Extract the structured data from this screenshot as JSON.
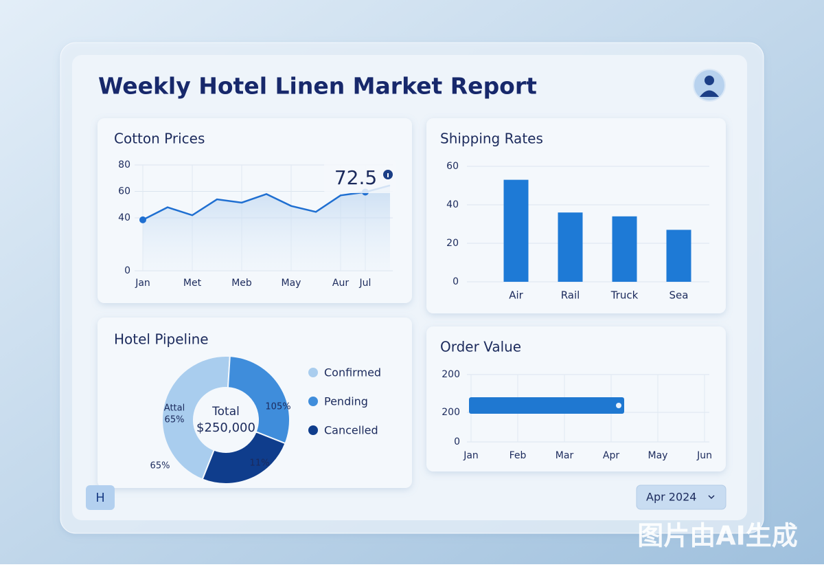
{
  "header": {
    "title": "Weekly Hotel Linen Market Report"
  },
  "chart_data": [
    {
      "type": "line",
      "title": "Cotton Prices",
      "categories": [
        "Jan",
        null,
        "Met",
        null,
        "Meb",
        null,
        "May",
        null,
        "Aur",
        "Jul",
        null
      ],
      "values": [
        38.5,
        48,
        42,
        54,
        51.5,
        58,
        49,
        44.5,
        57,
        59.5,
        64.5
      ],
      "color": "#1f6fd1",
      "ylim": [
        0,
        80
      ],
      "yticks": [
        0,
        40,
        60,
        80
      ],
      "grid": true,
      "annotation": "72.5"
    },
    {
      "type": "bar",
      "title": "Shipping Rates",
      "categories": [
        "Air",
        "Rail",
        "Truck",
        "Sea"
      ],
      "values": [
        53,
        36,
        34,
        27
      ],
      "color": "#1e7ad6",
      "ylim": [
        0,
        60
      ],
      "yticks": [
        0,
        20,
        40,
        60
      ],
      "grid": true
    },
    {
      "type": "donut",
      "title": "Hotel Pipeline",
      "categories": [
        "Confirmed",
        "Pending",
        "Cancelled"
      ],
      "values": [
        45,
        30,
        25
      ],
      "colors": [
        "#a9cdee",
        "#3f8ddb",
        "#0f3d8c"
      ],
      "center_label": "Total",
      "center_value": "$250,000",
      "annotations": [
        "Attal",
        "65%",
        "105%",
        "11%",
        "65%"
      ]
    },
    {
      "type": "range-bar",
      "title": "Order Value",
      "categories": [
        "Jan",
        "Feb",
        "Mar",
        "Apr",
        "May",
        "Jun"
      ],
      "y_labels": [
        "200",
        "200",
        "0"
      ],
      "value": 200,
      "span": [
        "Jan",
        "Apr"
      ],
      "color": "#1f78d1"
    }
  ],
  "footer": {
    "badge": "H",
    "period": "Apr 2024"
  },
  "watermark": "图片由AI生成"
}
